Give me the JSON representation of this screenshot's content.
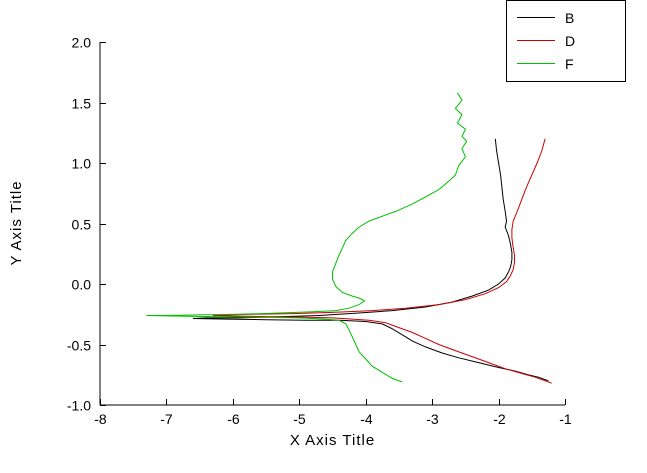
{
  "chart_data": {
    "type": "line",
    "title": "",
    "xlabel": "X Axis Title",
    "ylabel": "Y Axis Title",
    "xlim": [
      -8,
      -1
    ],
    "ylim": [
      -1.0,
      2.0
    ],
    "xticks": [
      -8,
      -7,
      -6,
      -5,
      -4,
      -3,
      -2,
      -1
    ],
    "xtick_labels": [
      "-8",
      "-7",
      "-6",
      "-5",
      "-4",
      "-3",
      "-2",
      "-1"
    ],
    "yticks": [
      -1.0,
      -0.5,
      0.0,
      0.5,
      1.0,
      1.5,
      2.0
    ],
    "ytick_labels": [
      "-1.0",
      "-0.5",
      "0.0",
      "0.5",
      "1.0",
      "1.5",
      "2.0"
    ],
    "grid": false,
    "legend_position": "top-right",
    "series": [
      {
        "name": "B",
        "color": "#000000",
        "points": [
          [
            -2.05,
            1.2
          ],
          [
            -2.03,
            1.1
          ],
          [
            -2.0,
            1.0
          ],
          [
            -1.97,
            0.9
          ],
          [
            -1.95,
            0.8
          ],
          [
            -1.93,
            0.7
          ],
          [
            -1.9,
            0.6
          ],
          [
            -1.88,
            0.52
          ],
          [
            -1.9,
            0.47
          ],
          [
            -1.85,
            0.4
          ],
          [
            -1.82,
            0.33
          ],
          [
            -1.8,
            0.26
          ],
          [
            -1.8,
            0.2
          ],
          [
            -1.82,
            0.14
          ],
          [
            -1.85,
            0.1
          ],
          [
            -1.9,
            0.05
          ],
          [
            -2.0,
            0.0
          ],
          [
            -2.15,
            -0.05
          ],
          [
            -2.4,
            -0.1
          ],
          [
            -2.7,
            -0.15
          ],
          [
            -3.1,
            -0.19
          ],
          [
            -3.6,
            -0.22
          ],
          [
            -4.1,
            -0.24
          ],
          [
            -4.7,
            -0.26
          ],
          [
            -5.3,
            -0.27
          ],
          [
            -5.9,
            -0.28
          ],
          [
            -6.4,
            -0.28
          ],
          [
            -6.6,
            -0.285
          ],
          [
            -6.1,
            -0.29
          ],
          [
            -5.5,
            -0.295
          ],
          [
            -4.9,
            -0.3
          ],
          [
            -4.4,
            -0.3
          ],
          [
            -4.0,
            -0.31
          ],
          [
            -3.75,
            -0.33
          ],
          [
            -3.6,
            -0.37
          ],
          [
            -3.45,
            -0.42
          ],
          [
            -3.3,
            -0.47
          ],
          [
            -3.1,
            -0.52
          ],
          [
            -2.85,
            -0.57
          ],
          [
            -2.6,
            -0.61
          ],
          [
            -2.3,
            -0.65
          ],
          [
            -2.0,
            -0.69
          ],
          [
            -1.75,
            -0.72
          ],
          [
            -1.55,
            -0.75
          ],
          [
            -1.4,
            -0.77
          ],
          [
            -1.3,
            -0.79
          ],
          [
            -1.25,
            -0.8
          ]
        ]
      },
      {
        "name": "D",
        "color": "#cc0000",
        "points": [
          [
            -1.3,
            1.2
          ],
          [
            -1.35,
            1.1
          ],
          [
            -1.42,
            1.0
          ],
          [
            -1.5,
            0.9
          ],
          [
            -1.58,
            0.8
          ],
          [
            -1.65,
            0.7
          ],
          [
            -1.72,
            0.6
          ],
          [
            -1.78,
            0.52
          ],
          [
            -1.8,
            0.45
          ],
          [
            -1.8,
            0.38
          ],
          [
            -1.78,
            0.3
          ],
          [
            -1.76,
            0.24
          ],
          [
            -1.76,
            0.18
          ],
          [
            -1.78,
            0.12
          ],
          [
            -1.82,
            0.07
          ],
          [
            -1.88,
            0.02
          ],
          [
            -2.0,
            -0.03
          ],
          [
            -2.2,
            -0.08
          ],
          [
            -2.5,
            -0.13
          ],
          [
            -2.9,
            -0.17
          ],
          [
            -3.4,
            -0.2
          ],
          [
            -3.9,
            -0.22
          ],
          [
            -4.5,
            -0.235
          ],
          [
            -5.1,
            -0.245
          ],
          [
            -5.7,
            -0.25
          ],
          [
            -6.1,
            -0.255
          ],
          [
            -6.3,
            -0.26
          ],
          [
            -5.9,
            -0.265
          ],
          [
            -5.4,
            -0.27
          ],
          [
            -4.9,
            -0.275
          ],
          [
            -4.5,
            -0.28
          ],
          [
            -4.2,
            -0.29
          ],
          [
            -3.95,
            -0.3
          ],
          [
            -3.7,
            -0.32
          ],
          [
            -3.5,
            -0.36
          ],
          [
            -3.3,
            -0.4
          ],
          [
            -3.1,
            -0.45
          ],
          [
            -2.9,
            -0.5
          ],
          [
            -2.65,
            -0.55
          ],
          [
            -2.4,
            -0.6
          ],
          [
            -2.15,
            -0.65
          ],
          [
            -1.9,
            -0.7
          ],
          [
            -1.65,
            -0.74
          ],
          [
            -1.45,
            -0.77
          ],
          [
            -1.3,
            -0.8
          ],
          [
            -1.2,
            -0.82
          ]
        ]
      },
      {
        "name": "F",
        "color": "#00c000",
        "points": [
          [
            -2.62,
            1.58
          ],
          [
            -2.55,
            1.52
          ],
          [
            -2.65,
            1.45
          ],
          [
            -2.55,
            1.4
          ],
          [
            -2.62,
            1.33
          ],
          [
            -2.5,
            1.28
          ],
          [
            -2.55,
            1.22
          ],
          [
            -2.48,
            1.18
          ],
          [
            -2.55,
            1.12
          ],
          [
            -2.5,
            1.05
          ],
          [
            -2.6,
            0.98
          ],
          [
            -2.65,
            0.9
          ],
          [
            -2.75,
            0.85
          ],
          [
            -2.9,
            0.78
          ],
          [
            -3.1,
            0.72
          ],
          [
            -3.3,
            0.66
          ],
          [
            -3.55,
            0.6
          ],
          [
            -3.75,
            0.56
          ],
          [
            -3.95,
            0.52
          ],
          [
            -4.1,
            0.47
          ],
          [
            -4.2,
            0.42
          ],
          [
            -4.3,
            0.36
          ],
          [
            -4.35,
            0.3
          ],
          [
            -4.4,
            0.24
          ],
          [
            -4.45,
            0.17
          ],
          [
            -4.5,
            0.1
          ],
          [
            -4.5,
            0.04
          ],
          [
            -4.45,
            -0.02
          ],
          [
            -4.35,
            -0.07
          ],
          [
            -4.2,
            -0.1
          ],
          [
            -4.08,
            -0.12
          ],
          [
            -4.02,
            -0.14
          ],
          [
            -4.1,
            -0.17
          ],
          [
            -4.25,
            -0.2
          ],
          [
            -4.45,
            -0.22
          ],
          [
            -4.8,
            -0.23
          ],
          [
            -5.3,
            -0.24
          ],
          [
            -5.9,
            -0.25
          ],
          [
            -6.5,
            -0.255
          ],
          [
            -7.0,
            -0.26
          ],
          [
            -7.3,
            -0.26
          ],
          [
            -6.8,
            -0.265
          ],
          [
            -6.2,
            -0.27
          ],
          [
            -5.6,
            -0.275
          ],
          [
            -5.0,
            -0.28
          ],
          [
            -4.6,
            -0.29
          ],
          [
            -4.4,
            -0.3
          ],
          [
            -4.3,
            -0.33
          ],
          [
            -4.25,
            -0.38
          ],
          [
            -4.2,
            -0.44
          ],
          [
            -4.15,
            -0.5
          ],
          [
            -4.1,
            -0.56
          ],
          [
            -4.0,
            -0.62
          ],
          [
            -3.9,
            -0.68
          ],
          [
            -3.75,
            -0.73
          ],
          [
            -3.6,
            -0.78
          ],
          [
            -3.45,
            -0.81
          ]
        ]
      }
    ]
  }
}
